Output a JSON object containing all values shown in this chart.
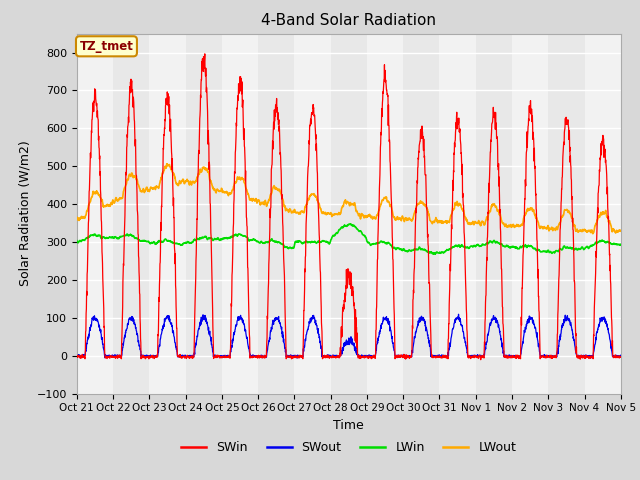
{
  "title": "4-Band Solar Radiation",
  "xlabel": "Time",
  "ylabel": "Solar Radiation (W/m2)",
  "ylim": [
    -100,
    850
  ],
  "yticks": [
    -100,
    0,
    100,
    200,
    300,
    400,
    500,
    600,
    700,
    800
  ],
  "fig_bg": "#d8d8d8",
  "plot_bg": "#ffffff",
  "annotation_text": "TZ_tmet",
  "annotation_bg": "#ffffcc",
  "annotation_border": "#cc8800",
  "line_colors": {
    "SWin": "#ff0000",
    "SWout": "#0000ee",
    "LWin": "#00dd00",
    "LWout": "#ffaa00"
  },
  "tick_labels": [
    "Oct 21",
    "Oct 22",
    "Oct 23",
    "Oct 24",
    "Oct 25",
    "Oct 26",
    "Oct 27",
    "Oct 28",
    "Oct 29",
    "Oct 30",
    "Oct 31",
    "Nov 1",
    "Nov 2",
    "Nov 3",
    "Nov 4",
    "Nov 5"
  ],
  "n_days": 15,
  "pts_per_day": 144,
  "day_peaks_SWin": [
    690,
    710,
    680,
    780,
    725,
    660,
    655,
    205,
    740,
    590,
    625,
    640,
    650,
    625,
    570
  ],
  "seed": 12345
}
